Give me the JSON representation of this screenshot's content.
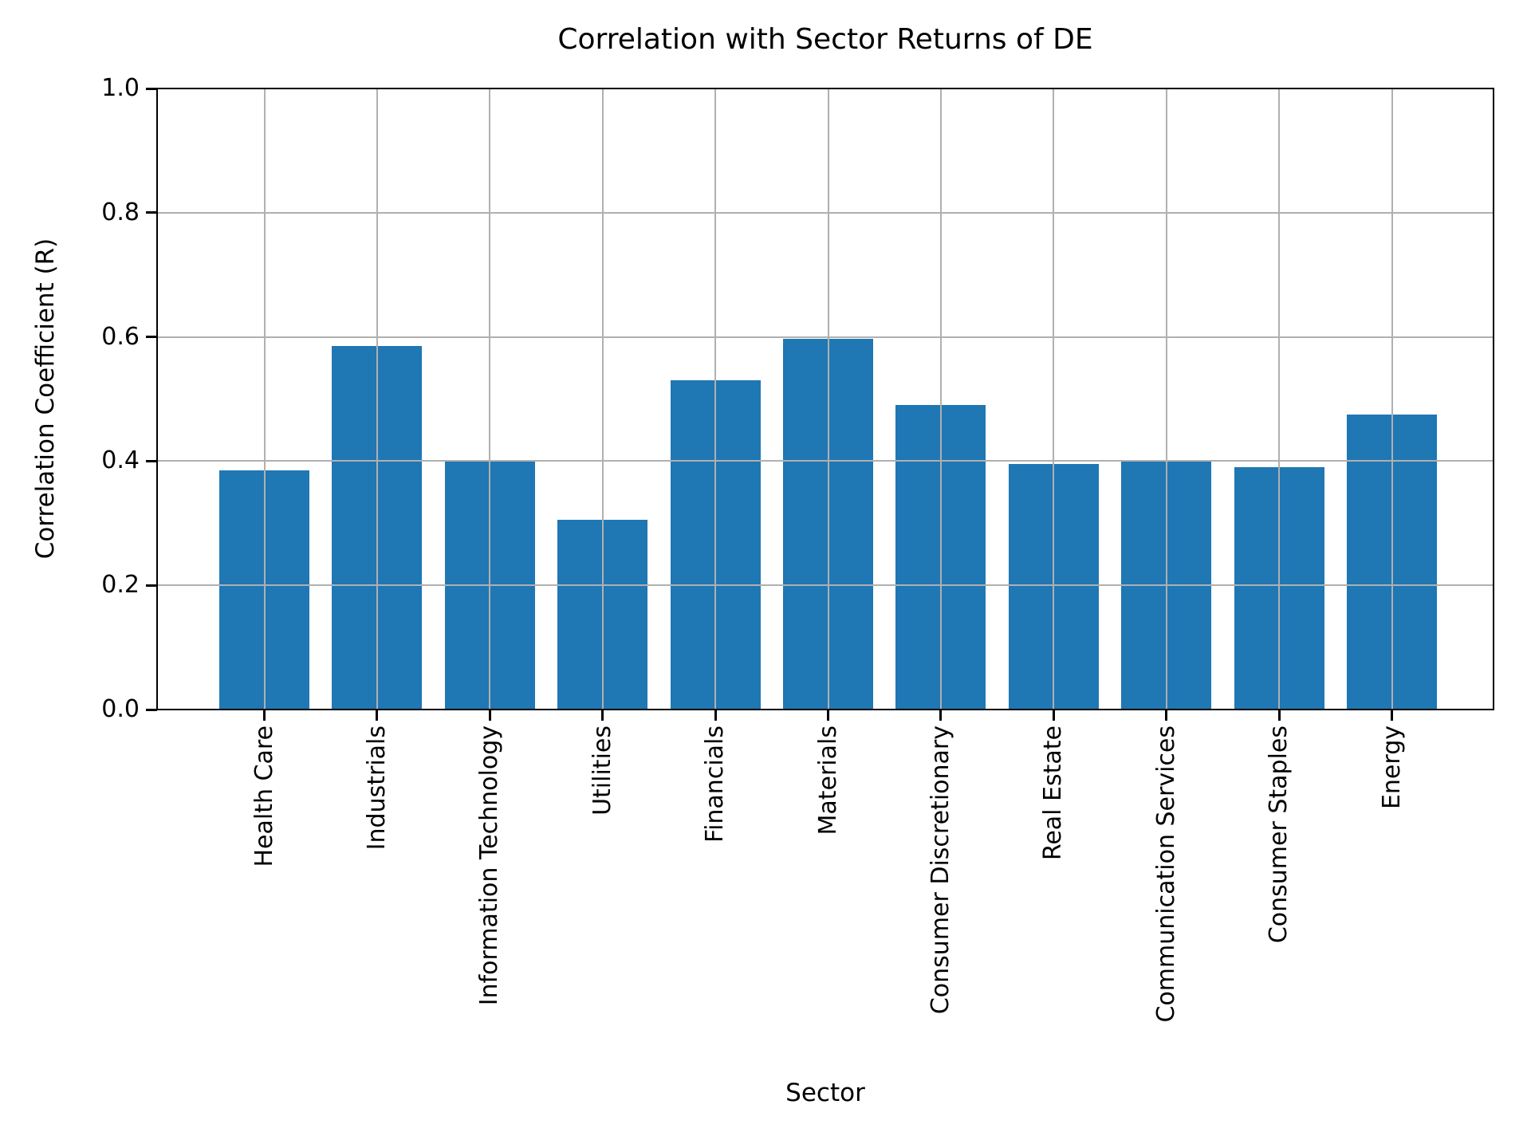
{
  "chart_data": {
    "type": "bar",
    "title": "Correlation with Sector Returns of DE",
    "xlabel": "Sector",
    "ylabel": "Correlation Coefficient (R)",
    "categories": [
      "Health Care",
      "Industrials",
      "Information Technology",
      "Utilities",
      "Financials",
      "Materials",
      "Consumer Discretionary",
      "Real Estate",
      "Communication Services",
      "Consumer Staples",
      "Energy"
    ],
    "values": [
      0.385,
      0.585,
      0.4,
      0.305,
      0.53,
      0.597,
      0.49,
      0.395,
      0.402,
      0.39,
      0.475
    ],
    "ylim": [
      0.0,
      1.0
    ],
    "yticks": [
      0.0,
      0.2,
      0.4,
      0.6,
      0.8,
      1.0
    ],
    "ytick_labels": [
      "0.0",
      "0.2",
      "0.4",
      "0.6",
      "0.8",
      "1.0"
    ],
    "xtick_rotation_deg": 90,
    "grid": true,
    "grid_over_bars": true,
    "legend": "none",
    "bar_color": "#1f77b4",
    "grid_color": "#b0b0b0",
    "spine_color": "#000000",
    "background_color": "#ffffff"
  }
}
